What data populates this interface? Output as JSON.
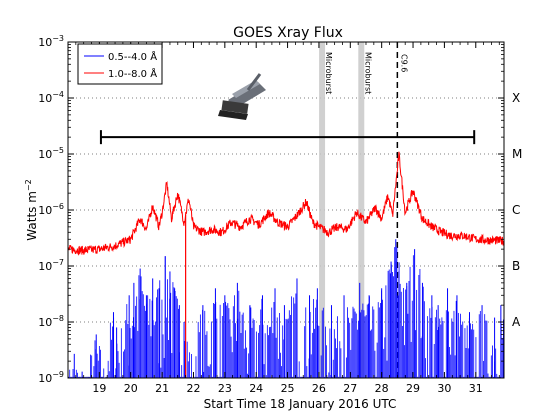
{
  "chart_data": {
    "type": "line",
    "title": "GOES Xray Flux",
    "xlabel": "Start Time 18 January 2016 UTC",
    "ylabel": "Watts m",
    "ylabel_sup": "−2",
    "yscale": "log",
    "xlim": [
      18.0,
      31.9
    ],
    "ylim_exp": [
      -9,
      -3
    ],
    "x_ticks": [
      19,
      20,
      21,
      22,
      23,
      24,
      25,
      26,
      27,
      28,
      29,
      30,
      31
    ],
    "x_tick_labels": [
      "19",
      "20",
      "21",
      "22",
      "23",
      "24",
      "25",
      "26",
      "27",
      "28",
      "29",
      "30",
      "31"
    ],
    "y_ticks": [
      {
        "exp": -9,
        "base": "10",
        "sup": "−9"
      },
      {
        "exp": -8,
        "base": "10",
        "sup": "−8"
      },
      {
        "exp": -7,
        "base": "10",
        "sup": "−7"
      },
      {
        "exp": -6,
        "base": "10",
        "sup": "−6"
      },
      {
        "exp": -5,
        "base": "10",
        "sup": "−5"
      },
      {
        "exp": -4,
        "base": "10",
        "sup": "−4"
      },
      {
        "exp": -3,
        "base": "10",
        "sup": "−3"
      }
    ],
    "flare_classes": [
      {
        "label": "A",
        "exp": -8
      },
      {
        "label": "B",
        "exp": -7
      },
      {
        "label": "C",
        "exp": -6
      },
      {
        "label": "M",
        "exp": -5
      },
      {
        "label": "X",
        "exp": -4
      }
    ],
    "grid": "horizontal-dotted",
    "legend_position": "top-left",
    "series": [
      {
        "name": "0.5--4.0 Å",
        "color": "#0000ff",
        "baseline": 1e-09,
        "spikes": [
          [
            18.2,
            2.7e-09
          ],
          [
            18.45,
            1.3e-09
          ],
          [
            18.9,
            6e-09
          ],
          [
            19.45,
            1.5e-08
          ],
          [
            19.55,
            8e-09
          ],
          [
            19.95,
            3e-08
          ],
          [
            20.1,
            5e-08
          ],
          [
            20.3,
            9e-08
          ],
          [
            20.5,
            3e-08
          ],
          [
            20.7,
            6e-08
          ],
          [
            20.9,
            4e-08
          ],
          [
            21.1,
            1.5e-07
          ],
          [
            21.25,
            8e-08
          ],
          [
            21.4,
            4e-08
          ],
          [
            21.55,
            2e-08
          ],
          [
            21.7,
            1e-08
          ],
          [
            22.3,
            2e-08
          ],
          [
            22.7,
            4e-08
          ],
          [
            23.0,
            3e-08
          ],
          [
            23.4,
            5e-08
          ],
          [
            23.8,
            2e-08
          ],
          [
            24.2,
            3e-08
          ],
          [
            24.6,
            4e-08
          ],
          [
            24.9,
            2e-08
          ],
          [
            25.3,
            6e-08
          ],
          [
            25.7,
            3e-08
          ],
          [
            25.95,
            4e-08
          ],
          [
            26.4,
            2e-08
          ],
          [
            26.8,
            3e-08
          ],
          [
            27.3,
            5e-08
          ],
          [
            27.6,
            3e-08
          ],
          [
            28.0,
            4e-08
          ],
          [
            28.3,
            1.2e-07
          ],
          [
            28.45,
            3e-07
          ],
          [
            28.55,
            8e-08
          ],
          [
            28.8,
            5e-08
          ],
          [
            29.05,
            2e-07
          ],
          [
            29.3,
            5e-08
          ],
          [
            29.6,
            3e-08
          ],
          [
            29.8,
            2e-08
          ],
          [
            30.1,
            4e-08
          ],
          [
            30.4,
            3e-08
          ],
          [
            30.8,
            1.5e-08
          ],
          [
            31.2,
            2e-08
          ],
          [
            31.6,
            1.2e-08
          ],
          [
            31.8,
            2e-08
          ]
        ]
      },
      {
        "name": "1.0--8.0 Å",
        "color": "#ff0000",
        "profile": [
          [
            18.0,
            2e-07
          ],
          [
            18.5,
            1.9e-07
          ],
          [
            19.0,
            2e-07
          ],
          [
            19.5,
            2.3e-07
          ],
          [
            20.0,
            3e-07
          ],
          [
            20.3,
            7e-07
          ],
          [
            20.5,
            4.5e-07
          ],
          [
            20.7,
            1.2e-06
          ],
          [
            20.9,
            5e-07
          ],
          [
            21.0,
            9e-07
          ],
          [
            21.15,
            3e-06
          ],
          [
            21.3,
            7e-07
          ],
          [
            21.5,
            2e-06
          ],
          [
            21.7,
            6e-07
          ],
          [
            21.85,
            1.6e-06
          ],
          [
            22.0,
            5e-07
          ],
          [
            22.3,
            4e-07
          ],
          [
            22.6,
            4.5e-07
          ],
          [
            22.9,
            4e-07
          ],
          [
            23.2,
            6e-07
          ],
          [
            23.5,
            5e-07
          ],
          [
            23.8,
            7e-07
          ],
          [
            24.1,
            5.5e-07
          ],
          [
            24.4,
            9e-07
          ],
          [
            24.7,
            6e-07
          ],
          [
            25.0,
            5e-07
          ],
          [
            25.3,
            8e-07
          ],
          [
            25.6,
            1.4e-06
          ],
          [
            25.8,
            6e-07
          ],
          [
            26.0,
            5e-07
          ],
          [
            26.3,
            4e-07
          ],
          [
            26.6,
            5e-07
          ],
          [
            26.9,
            4.5e-07
          ],
          [
            27.2,
            9e-07
          ],
          [
            27.5,
            6e-07
          ],
          [
            27.8,
            1.1e-06
          ],
          [
            28.0,
            7e-07
          ],
          [
            28.2,
            1.8e-06
          ],
          [
            28.35,
            8e-07
          ],
          [
            28.55,
            1e-05
          ],
          [
            28.75,
            9e-07
          ],
          [
            29.0,
            2.2e-06
          ],
          [
            29.3,
            7e-07
          ],
          [
            29.6,
            5e-07
          ],
          [
            29.9,
            4e-07
          ],
          [
            30.2,
            3.5e-07
          ],
          [
            30.6,
            3.5e-07
          ],
          [
            31.0,
            3e-07
          ],
          [
            31.4,
            2.9e-07
          ],
          [
            31.9,
            2.8e-07
          ]
        ],
        "dips": [
          [
            21.75,
            1e-09
          ]
        ]
      }
    ],
    "annotations": {
      "microbursts": [
        {
          "x": 26.1,
          "label": "Microburst"
        },
        {
          "x": 27.35,
          "label": "Microburst"
        }
      ],
      "flare_marker": {
        "x": 28.5,
        "label": "C9.6"
      },
      "time_span": {
        "x_start": 19.05,
        "x_end": 30.95,
        "y": 2e-05
      }
    }
  }
}
